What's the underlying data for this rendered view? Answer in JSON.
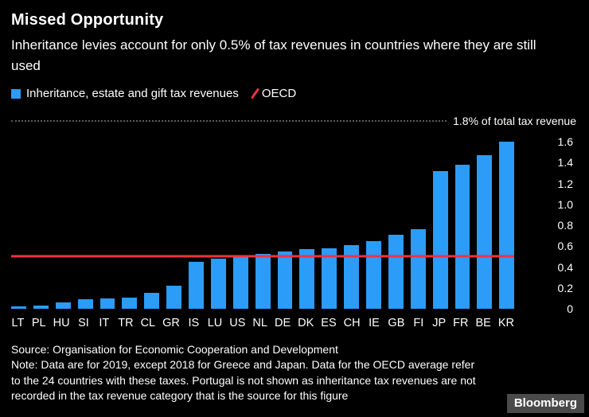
{
  "header": {
    "title": "Missed Opportunity",
    "subtitle": "Inheritance levies account for only 0.5% of tax revenues in countries where they are still used"
  },
  "legend": {
    "series_label": "Inheritance, estate and gift tax revenues",
    "oecd_label": "OECD"
  },
  "colors": {
    "background": "#000000",
    "bar": "#2b9cf8",
    "oecd_line": "#ef3340",
    "text": "#ffffff",
    "gridline": "#5c5c5c"
  },
  "chart_data": {
    "type": "bar",
    "title": "Missed Opportunity",
    "subtitle": "Inheritance levies account for only 0.5% of tax revenues in countries where they are still used",
    "series_name": "Inheritance, estate and gift tax revenues",
    "categories": [
      "LT",
      "PL",
      "HU",
      "SI",
      "IT",
      "TR",
      "CL",
      "GR",
      "IS",
      "LU",
      "US",
      "NL",
      "DE",
      "DK",
      "ES",
      "CH",
      "IE",
      "GB",
      "FI",
      "JP",
      "FR",
      "BE",
      "KR"
    ],
    "values": [
      0.02,
      0.03,
      0.06,
      0.09,
      0.1,
      0.11,
      0.15,
      0.22,
      0.45,
      0.48,
      0.5,
      0.53,
      0.55,
      0.57,
      0.58,
      0.61,
      0.65,
      0.71,
      0.76,
      1.32,
      1.38,
      1.47,
      1.6
    ],
    "reference_line": {
      "name": "OECD",
      "value": 0.5
    },
    "ylim": [
      0,
      1.8
    ],
    "ytick_labels": [
      "0",
      "0.2",
      "0.4",
      "0.6",
      "0.8",
      "1.0",
      "1.2",
      "1.4",
      "1.6"
    ],
    "top_axis_label": "1.8% of total tax revenue",
    "ylabel": "% of total tax revenue",
    "xlabel": "",
    "legend_position": "top-left",
    "grid": "single dotted gridline at 1.8 only"
  },
  "footer": {
    "source": "Source: Organisation for Economic Cooperation and Development",
    "note": "Note: Data are for 2019, except 2018 for Greece and Japan. Data for the OECD average refer to the 24 countries with these taxes. Portugal is not shown as inheritance tax revenues are not recorded in the tax revenue category that is the source for this figure",
    "brand": "Bloomberg"
  }
}
